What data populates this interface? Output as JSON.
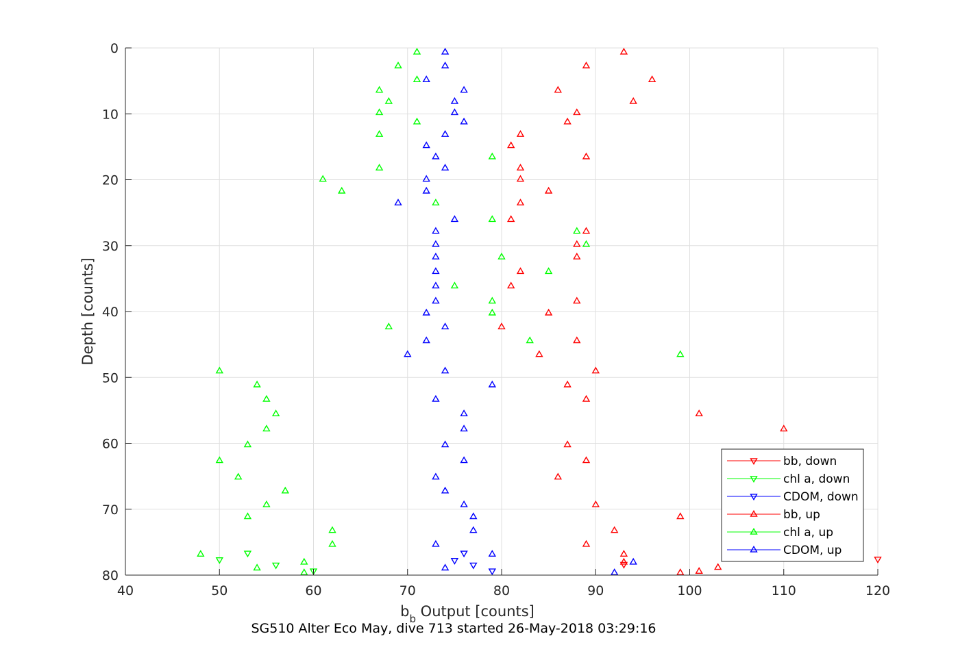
{
  "chart_data": {
    "type": "scatter",
    "xlabel_main": "b",
    "xlabel_sub": "b",
    "xlabel_rest": " Output [counts]",
    "ylabel": "Depth [counts]",
    "caption": "SG510 Alter Eco May, dive 713 started 26-May-2018 03:29:16",
    "xlim": [
      40,
      120
    ],
    "ylim": [
      0,
      80
    ],
    "y_reversed": true,
    "grid": true,
    "legend_position": "bottom-right",
    "x_ticks": [
      "40",
      "50",
      "60",
      "70",
      "80",
      "90",
      "100",
      "110",
      "120"
    ],
    "y_ticks": [
      "0",
      "10",
      "20",
      "30",
      "40",
      "50",
      "60",
      "70",
      "80"
    ],
    "legend": [
      "bb, down",
      "chl a, down",
      "CDOM, down",
      "bb, up",
      "chl a, up",
      "CDOM, up"
    ],
    "series": [
      {
        "name": "bb, down",
        "color": "#ff0000",
        "marker": "down",
        "points": [
          [
            120,
            77.6
          ],
          [
            93,
            78.4
          ]
        ]
      },
      {
        "name": "chl a, down",
        "color": "#00ff00",
        "marker": "down",
        "points": [
          [
            50,
            77.7
          ],
          [
            53,
            76.7
          ],
          [
            56,
            78.5
          ],
          [
            60,
            79.4
          ]
        ]
      },
      {
        "name": "CDOM, down",
        "color": "#0000ff",
        "marker": "down",
        "points": [
          [
            75,
            77.8
          ],
          [
            76,
            76.7
          ],
          [
            77,
            78.5
          ],
          [
            79,
            79.4
          ]
        ]
      },
      {
        "name": "bb, up",
        "color": "#ff0000",
        "marker": "up",
        "points": [
          [
            93,
            0.6
          ],
          [
            89,
            2.7
          ],
          [
            96,
            4.8
          ],
          [
            86,
            6.4
          ],
          [
            94,
            8.1
          ],
          [
            88,
            9.8
          ],
          [
            87,
            11.2
          ],
          [
            82,
            13.1
          ],
          [
            81,
            14.8
          ],
          [
            89,
            16.5
          ],
          [
            82,
            18.2
          ],
          [
            82,
            19.9
          ],
          [
            85,
            21.7
          ],
          [
            82,
            23.5
          ],
          [
            81,
            26.0
          ],
          [
            89,
            27.8
          ],
          [
            88,
            29.8
          ],
          [
            88,
            31.7
          ],
          [
            82,
            33.9
          ],
          [
            81,
            36.1
          ],
          [
            88,
            38.4
          ],
          [
            85,
            40.2
          ],
          [
            80,
            42.3
          ],
          [
            88,
            44.4
          ],
          [
            84,
            46.5
          ],
          [
            90,
            49.0
          ],
          [
            87,
            51.1
          ],
          [
            89,
            53.3
          ],
          [
            101,
            55.5
          ],
          [
            110,
            57.8
          ],
          [
            87,
            60.2
          ],
          [
            89,
            62.6
          ],
          [
            86,
            65.1
          ],
          [
            90,
            69.3
          ],
          [
            99,
            71.1
          ],
          [
            92,
            73.2
          ],
          [
            89,
            75.3
          ],
          [
            93,
            76.8
          ],
          [
            93,
            78.0
          ],
          [
            103,
            78.8
          ],
          [
            101,
            79.4
          ],
          [
            99,
            79.6
          ]
        ]
      },
      {
        "name": "chl a, up",
        "color": "#00ff00",
        "marker": "up",
        "points": [
          [
            71,
            0.6
          ],
          [
            69,
            2.7
          ],
          [
            71,
            4.8
          ],
          [
            67,
            6.4
          ],
          [
            68,
            8.1
          ],
          [
            67,
            9.8
          ],
          [
            71,
            11.2
          ],
          [
            67,
            13.1
          ],
          [
            79,
            16.5
          ],
          [
            67,
            18.2
          ],
          [
            61,
            19.9
          ],
          [
            63,
            21.7
          ],
          [
            73,
            23.5
          ],
          [
            79,
            26.0
          ],
          [
            88,
            27.8
          ],
          [
            89,
            29.8
          ],
          [
            80,
            31.7
          ],
          [
            85,
            33.9
          ],
          [
            75,
            36.1
          ],
          [
            79,
            38.4
          ],
          [
            79,
            40.2
          ],
          [
            68,
            42.3
          ],
          [
            83,
            44.4
          ],
          [
            99,
            46.5
          ],
          [
            50,
            49.0
          ],
          [
            54,
            51.1
          ],
          [
            55,
            53.3
          ],
          [
            56,
            55.5
          ],
          [
            55,
            57.8
          ],
          [
            53,
            60.2
          ],
          [
            50,
            62.6
          ],
          [
            52,
            65.1
          ],
          [
            57,
            67.2
          ],
          [
            55,
            69.3
          ],
          [
            53,
            71.1
          ],
          [
            62,
            73.2
          ],
          [
            62,
            75.3
          ],
          [
            48,
            76.8
          ],
          [
            54,
            78.9
          ],
          [
            59,
            78.0
          ],
          [
            59,
            79.6
          ]
        ]
      },
      {
        "name": "CDOM, up",
        "color": "#0000ff",
        "marker": "up",
        "points": [
          [
            74,
            0.6
          ],
          [
            74,
            2.7
          ],
          [
            72,
            4.8
          ],
          [
            76,
            6.4
          ],
          [
            75,
            8.1
          ],
          [
            75,
            9.8
          ],
          [
            76,
            11.2
          ],
          [
            74,
            13.1
          ],
          [
            72,
            14.8
          ],
          [
            73,
            16.5
          ],
          [
            74,
            18.2
          ],
          [
            72,
            19.9
          ],
          [
            72,
            21.7
          ],
          [
            69,
            23.5
          ],
          [
            75,
            26.0
          ],
          [
            73,
            27.8
          ],
          [
            73,
            29.8
          ],
          [
            73,
            31.7
          ],
          [
            73,
            33.9
          ],
          [
            73,
            36.1
          ],
          [
            73,
            38.4
          ],
          [
            72,
            40.2
          ],
          [
            74,
            42.3
          ],
          [
            72,
            44.4
          ],
          [
            70,
            46.5
          ],
          [
            74,
            49.0
          ],
          [
            79,
            51.1
          ],
          [
            73,
            53.3
          ],
          [
            76,
            55.5
          ],
          [
            76,
            57.8
          ],
          [
            74,
            60.2
          ],
          [
            76,
            62.6
          ],
          [
            73,
            65.1
          ],
          [
            74,
            67.2
          ],
          [
            76,
            69.3
          ],
          [
            77,
            71.1
          ],
          [
            77,
            73.2
          ],
          [
            73,
            75.3
          ],
          [
            79,
            76.8
          ],
          [
            74,
            78.9
          ],
          [
            94,
            78.0
          ],
          [
            92,
            79.6
          ]
        ]
      }
    ]
  }
}
